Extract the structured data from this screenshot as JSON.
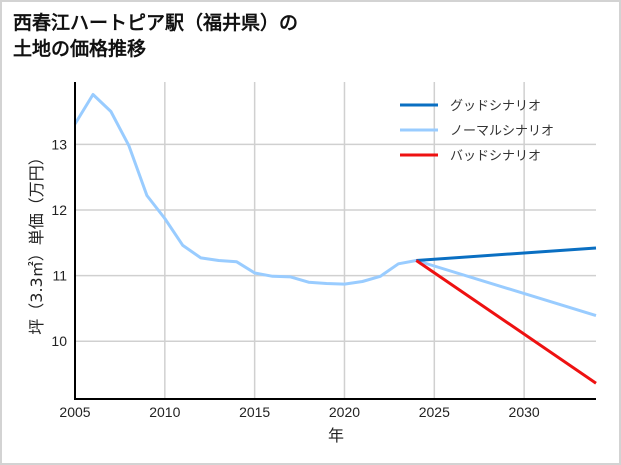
{
  "title": "西春江ハートピア駅（福井県）の\n土地の価格推移",
  "chart_data": {
    "type": "line",
    "title": "西春江ハートピア駅（福井県）の土地の価格推移",
    "xlabel": "年",
    "ylabel": "坪（3.3㎡）単価（万円）",
    "xlim": [
      2005,
      2034
    ],
    "ylim": [
      9.12,
      13.95
    ],
    "xticks": [
      2005,
      2010,
      2015,
      2020,
      2025,
      2030
    ],
    "yticks": [
      10,
      11,
      12,
      13
    ],
    "grid": true,
    "legend_position": "upper right",
    "series": [
      {
        "name": "グッドシナリオ",
        "color": "#0a6fc2",
        "x": [
          2024,
          2034
        ],
        "values": [
          11.23,
          11.42
        ]
      },
      {
        "name": "ノーマルシナリオ",
        "color": "#99ccff",
        "x": [
          2005,
          2006,
          2007,
          2008,
          2009,
          2010,
          2011,
          2012,
          2013,
          2014,
          2015,
          2016,
          2017,
          2018,
          2019,
          2020,
          2021,
          2022,
          2023,
          2024,
          2034
        ],
        "values": [
          13.31,
          13.76,
          13.5,
          12.98,
          12.22,
          11.87,
          11.46,
          11.27,
          11.23,
          11.21,
          11.04,
          10.99,
          10.98,
          10.9,
          10.88,
          10.87,
          10.91,
          10.99,
          11.18,
          11.23,
          10.39
        ]
      },
      {
        "name": "バッドシナリオ",
        "color": "#ee1111",
        "x": [
          2024,
          2034
        ],
        "values": [
          11.23,
          9.36
        ]
      }
    ]
  }
}
